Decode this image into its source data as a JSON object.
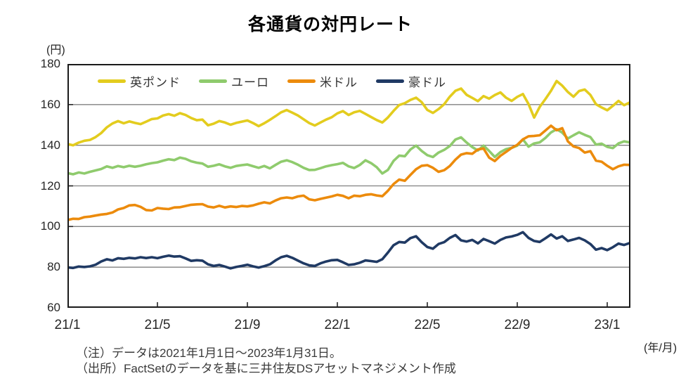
{
  "title": "各通貨の対円レート",
  "notes": {
    "line1": "（注）データは2021年1月1日～2023年1月31日。",
    "line2": "（出所）FactSetのデータを基に三井住友DSアセットマネジメント作成"
  },
  "chart_data": {
    "type": "line",
    "title": "各通貨の対円レート",
    "ylabel": "(円)",
    "xlabel": "(年/月)",
    "ylim": [
      60,
      180
    ],
    "grid": "horizontal",
    "legend_position": "top-inside",
    "colors": {
      "gridline": "#808080",
      "border": "#1a1a1a",
      "tick": "#262626"
    },
    "y_ticks": [
      {
        "v": 180,
        "label": "180"
      },
      {
        "v": 160,
        "label": "160"
      },
      {
        "v": 140,
        "label": "140"
      },
      {
        "v": 120,
        "label": "120"
      },
      {
        "v": 100,
        "label": "100"
      },
      {
        "v": 80,
        "label": "80"
      },
      {
        "v": 60,
        "label": "60"
      }
    ],
    "y_gridlines": [
      80,
      100,
      120,
      140,
      160
    ],
    "x_total_months": 25,
    "x_start": "2021-01",
    "x_end": "2023-01-31",
    "x_ticks": [
      {
        "m": 0,
        "label": "21/1"
      },
      {
        "m": 4,
        "label": "21/5"
      },
      {
        "m": 8,
        "label": "21/9"
      },
      {
        "m": 12,
        "label": "22/1"
      },
      {
        "m": 16,
        "label": "22/5"
      },
      {
        "m": 20,
        "label": "22/9"
      },
      {
        "m": 24,
        "label": "23/1"
      }
    ],
    "series": [
      {
        "name": "英ポンド",
        "color": "#e3cc1e",
        "values": [
          140.6,
          140.0,
          141.3,
          142.2,
          142.6,
          144.0,
          146.0,
          148.8,
          150.7,
          151.9,
          150.8,
          151.7,
          151.0,
          150.4,
          151.6,
          152.9,
          153.2,
          154.6,
          155.3,
          154.5,
          155.8,
          154.9,
          153.4,
          152.3,
          152.6,
          149.8,
          150.6,
          151.9,
          151.2,
          150.1,
          151.0,
          151.6,
          152.2,
          150.9,
          149.4,
          150.8,
          152.5,
          154.3,
          156.2,
          157.3,
          156.0,
          154.6,
          152.8,
          150.9,
          149.7,
          151.2,
          152.6,
          153.8,
          155.7,
          156.8,
          154.9,
          156.2,
          156.9,
          155.4,
          153.9,
          152.4,
          151.2,
          153.7,
          156.9,
          159.8,
          160.7,
          162.3,
          163.4,
          161.2,
          157.4,
          155.9,
          157.8,
          160.2,
          163.9,
          166.8,
          167.9,
          164.8,
          163.3,
          161.7,
          164.2,
          162.9,
          164.7,
          166.0,
          163.4,
          161.8,
          163.8,
          165.2,
          160.3,
          153.6,
          158.9,
          162.7,
          166.8,
          171.6,
          169.3,
          166.2,
          163.9,
          166.7,
          167.4,
          164.8,
          160.2,
          158.6,
          157.2,
          159.4,
          161.8,
          159.7,
          161.0
        ]
      },
      {
        "name": "ユーロ",
        "color": "#8fcb6d",
        "values": [
          126.3,
          125.7,
          126.6,
          126.1,
          126.9,
          127.6,
          128.3,
          129.6,
          128.9,
          129.8,
          129.2,
          129.9,
          129.4,
          129.9,
          130.6,
          131.2,
          131.6,
          132.4,
          133.1,
          132.7,
          133.9,
          133.3,
          132.1,
          131.4,
          131.0,
          129.4,
          129.9,
          130.6,
          129.6,
          128.9,
          129.8,
          130.2,
          130.5,
          129.7,
          128.9,
          129.8,
          128.6,
          130.3,
          131.9,
          132.6,
          131.7,
          130.4,
          128.9,
          127.8,
          127.9,
          128.7,
          129.6,
          130.2,
          130.7,
          131.3,
          129.6,
          128.8,
          130.3,
          132.6,
          131.2,
          129.2,
          126.1,
          127.9,
          132.3,
          134.9,
          134.6,
          137.9,
          139.8,
          137.2,
          135.1,
          134.2,
          136.4,
          137.7,
          139.6,
          142.8,
          143.9,
          141.3,
          139.1,
          137.4,
          139.8,
          137.2,
          134.2,
          136.6,
          138.1,
          138.7,
          139.8,
          142.9,
          139.3,
          140.9,
          141.4,
          143.6,
          146.3,
          147.9,
          146.2,
          143.3,
          144.9,
          146.4,
          145.1,
          144.0,
          140.3,
          140.8,
          139.2,
          138.6,
          140.9,
          141.9,
          141.4
        ]
      },
      {
        "name": "米ドル",
        "color": "#ec8b0c",
        "values": [
          103.2,
          103.8,
          103.7,
          104.6,
          104.9,
          105.4,
          105.9,
          106.2,
          106.9,
          108.4,
          109.1,
          110.4,
          110.6,
          109.7,
          108.1,
          107.9,
          109.1,
          108.8,
          108.6,
          109.4,
          109.5,
          110.1,
          110.7,
          110.9,
          111.0,
          109.8,
          109.4,
          110.2,
          109.4,
          109.9,
          109.6,
          110.1,
          109.9,
          110.4,
          111.2,
          111.9,
          111.4,
          112.8,
          113.9,
          114.3,
          113.9,
          114.8,
          115.2,
          113.4,
          112.9,
          113.6,
          114.2,
          114.8,
          115.6,
          115.1,
          113.9,
          115.2,
          114.9,
          115.6,
          115.9,
          115.3,
          114.9,
          117.6,
          120.9,
          123.1,
          122.5,
          125.4,
          128.2,
          129.9,
          130.2,
          128.9,
          126.9,
          127.7,
          129.8,
          132.9,
          135.4,
          136.1,
          135.8,
          137.9,
          138.4,
          133.9,
          132.2,
          134.8,
          136.7,
          138.7,
          140.2,
          142.9,
          144.4,
          144.6,
          144.9,
          147.2,
          149.6,
          147.4,
          148.4,
          141.9,
          139.4,
          138.6,
          136.4,
          137.1,
          132.4,
          131.9,
          129.9,
          128.2,
          129.6,
          130.4,
          130.3
        ]
      },
      {
        "name": "豪ドル",
        "color": "#203a64",
        "values": [
          79.9,
          79.6,
          80.3,
          80.1,
          80.4,
          81.2,
          82.8,
          83.9,
          83.3,
          84.4,
          84.1,
          84.6,
          84.3,
          84.9,
          84.5,
          84.9,
          84.4,
          85.1,
          85.7,
          85.2,
          85.4,
          84.3,
          83.1,
          83.4,
          83.2,
          81.4,
          80.6,
          81.1,
          80.3,
          79.4,
          80.1,
          80.6,
          81.2,
          80.4,
          79.8,
          80.5,
          81.4,
          83.3,
          84.9,
          85.6,
          84.6,
          83.2,
          81.9,
          80.9,
          80.6,
          81.9,
          82.8,
          83.4,
          83.6,
          82.4,
          81.1,
          81.4,
          82.2,
          83.3,
          83.0,
          82.6,
          83.9,
          87.2,
          90.8,
          92.4,
          92.1,
          94.3,
          95.2,
          92.3,
          89.9,
          89.1,
          91.4,
          92.3,
          94.4,
          95.8,
          93.2,
          92.6,
          93.4,
          91.7,
          93.9,
          92.8,
          91.6,
          93.4,
          94.6,
          95.1,
          95.9,
          97.2,
          94.4,
          92.9,
          92.4,
          94.2,
          96.1,
          94.1,
          95.2,
          92.9,
          93.6,
          94.4,
          93.2,
          91.4,
          88.6,
          89.4,
          88.4,
          89.8,
          91.6,
          90.9,
          91.9
        ]
      }
    ]
  }
}
